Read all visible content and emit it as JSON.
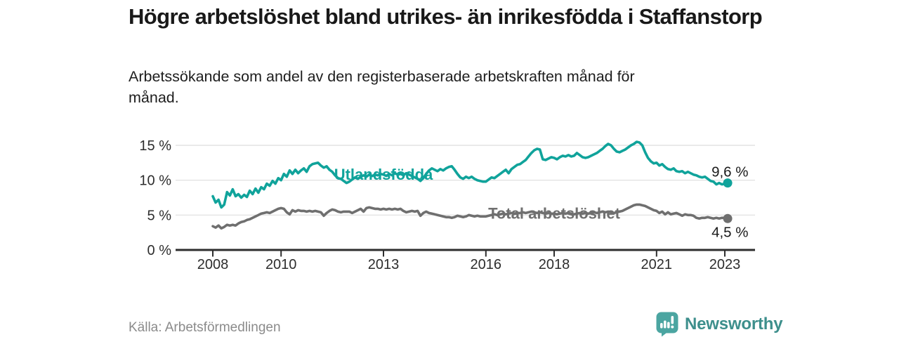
{
  "header": {
    "title": "Högre arbetslöshet bland utrikes- än inrikesfödda i Staffanstorp",
    "subtitle": "Arbetssökande som andel av den registerbaserade arbetskraften månad för månad."
  },
  "chart_data": {
    "type": "line",
    "title": "Högre arbetslöshet bland utrikes- än inrikesfödda i Staffanstorp",
    "unit": "%",
    "x_start_year": 2008,
    "x_end_year": 2023.083,
    "points_per_year": 12,
    "x_ticks": [
      2008,
      2010,
      2013,
      2016,
      2018,
      2021,
      2023
    ],
    "y_ticks": [
      0,
      5,
      10,
      15
    ],
    "y_tick_suffix": " %",
    "ylim": [
      0,
      16.5
    ],
    "grid": true,
    "legend_position": "inline-labels",
    "series": [
      {
        "name": "Utlandsfödda",
        "color": "#10a39b",
        "label_pos": {
          "year": 2013.0,
          "pct": 10.05
        },
        "end_label": {
          "text": "9,6 %",
          "year": 2023.15,
          "pct": 10.5
        },
        "end_value": 9.6,
        "values": [
          7.7,
          6.8,
          7.2,
          6.1,
          6.5,
          8.3,
          7.8,
          8.7,
          7.7,
          8.0,
          7.5,
          7.9,
          7.6,
          8.5,
          8.0,
          8.8,
          8.2,
          9.0,
          8.7,
          9.5,
          9.2,
          9.9,
          9.5,
          10.3,
          10.0,
          10.9,
          10.5,
          11.4,
          10.9,
          11.5,
          11.0,
          11.4,
          11.7,
          11.2,
          12.0,
          12.3,
          12.4,
          12.5,
          12.1,
          11.8,
          12.0,
          11.5,
          11.2,
          10.7,
          10.3,
          10.2,
          9.9,
          9.6,
          9.8,
          10.1,
          10.4,
          10.2,
          10.5,
          10.7,
          10.5,
          10.8,
          10.6,
          10.8,
          10.7,
          10.9,
          10.8,
          10.6,
          10.9,
          10.7,
          11.0,
          10.8,
          10.9,
          10.7,
          11.0,
          10.8,
          10.6,
          10.4,
          10.2,
          9.9,
          10.3,
          10.9,
          11.4,
          11.7,
          11.5,
          11.3,
          11.6,
          11.4,
          11.7,
          11.9,
          12.0,
          11.5,
          10.9,
          10.4,
          10.2,
          10.5,
          10.3,
          10.5,
          10.2,
          10.0,
          9.9,
          9.8,
          9.8,
          10.1,
          10.4,
          10.3,
          10.6,
          10.9,
          11.2,
          11.5,
          11.0,
          11.6,
          11.9,
          12.2,
          12.3,
          12.6,
          12.9,
          13.4,
          13.9,
          14.3,
          14.5,
          14.4,
          13.0,
          12.9,
          13.1,
          13.3,
          13.2,
          13.0,
          13.3,
          13.5,
          13.4,
          13.6,
          13.4,
          13.5,
          13.9,
          13.6,
          13.3,
          13.2,
          13.3,
          13.5,
          13.7,
          13.9,
          14.2,
          14.5,
          14.9,
          15.2,
          15.0,
          14.5,
          14.1,
          14.0,
          14.2,
          14.4,
          14.7,
          15.0,
          15.2,
          15.5,
          15.4,
          15.0,
          14.0,
          13.2,
          12.7,
          12.4,
          12.5,
          12.1,
          12.3,
          11.9,
          11.6,
          11.5,
          11.7,
          11.3,
          11.2,
          11.3,
          11.0,
          11.2,
          11.0,
          10.8,
          10.7,
          10.5,
          10.4,
          10.5,
          10.2,
          9.9,
          9.8,
          9.4,
          9.6,
          9.4,
          9.5,
          9.6
        ]
      },
      {
        "name": "Total arbetslöshet",
        "color": "#6f6f6f",
        "label_pos": {
          "year": 2018.0,
          "pct": 4.5
        },
        "end_label": {
          "text": "4,5 %",
          "year": 2023.15,
          "pct": 1.85
        },
        "end_value": 4.5,
        "values": [
          3.4,
          3.2,
          3.5,
          3.1,
          3.3,
          3.6,
          3.5,
          3.6,
          3.5,
          3.8,
          4.0,
          4.1,
          4.3,
          4.4,
          4.6,
          4.8,
          5.0,
          5.2,
          5.3,
          5.4,
          5.3,
          5.5,
          5.7,
          5.9,
          6.0,
          5.9,
          5.4,
          5.1,
          5.7,
          5.5,
          5.7,
          5.6,
          5.6,
          5.5,
          5.6,
          5.5,
          5.6,
          5.5,
          5.4,
          4.9,
          5.3,
          5.6,
          5.8,
          5.7,
          5.5,
          5.4,
          5.5,
          5.5,
          5.5,
          5.3,
          5.5,
          5.7,
          5.9,
          5.5,
          6.0,
          6.1,
          6.0,
          5.9,
          5.9,
          5.8,
          5.9,
          5.8,
          5.9,
          5.8,
          5.9,
          5.8,
          5.9,
          5.6,
          5.4,
          5.5,
          5.6,
          5.5,
          5.6,
          4.9,
          5.3,
          5.5,
          5.3,
          5.2,
          5.1,
          5.0,
          4.9,
          4.8,
          4.7,
          4.7,
          4.6,
          4.7,
          4.9,
          4.8,
          4.7,
          4.8,
          5.0,
          4.9,
          4.8,
          4.9,
          4.8,
          4.8,
          4.8,
          4.9,
          5.0,
          5.1,
          5.0,
          5.1,
          5.2,
          5.1,
          5.2,
          5.3,
          5.2,
          5.3,
          5.3,
          5.4,
          5.3,
          5.4,
          5.5,
          5.4,
          5.3,
          5.4,
          5.3,
          5.2,
          5.3,
          5.2,
          5.2,
          5.1,
          5.2,
          5.3,
          5.2,
          5.3,
          5.2,
          5.1,
          5.2,
          5.3,
          5.2,
          5.3,
          5.2,
          5.3,
          5.4,
          5.3,
          5.4,
          5.5,
          5.4,
          5.5,
          5.4,
          5.3,
          5.4,
          5.5,
          5.6,
          5.8,
          6.0,
          6.2,
          6.4,
          6.5,
          6.5,
          6.4,
          6.3,
          6.1,
          5.9,
          5.7,
          5.6,
          5.3,
          5.5,
          5.1,
          5.4,
          5.1,
          5.2,
          5.3,
          5.1,
          4.9,
          5.1,
          5.0,
          5.0,
          4.9,
          4.6,
          4.5,
          4.6,
          4.6,
          4.7,
          4.6,
          4.5,
          4.6,
          4.5,
          4.6,
          4.6,
          4.5
        ]
      }
    ],
    "axis_colors": {
      "grid": "#dedede",
      "axis": "#2e2e2e",
      "tick_label": "#2d2d2d"
    }
  },
  "footer": {
    "source": "Källa: Arbetsförmedlingen",
    "brand": "Newsworthy",
    "brand_color": "#3d8f8c",
    "brand_icon": "bar-chart-exclamation-bubble-icon"
  }
}
